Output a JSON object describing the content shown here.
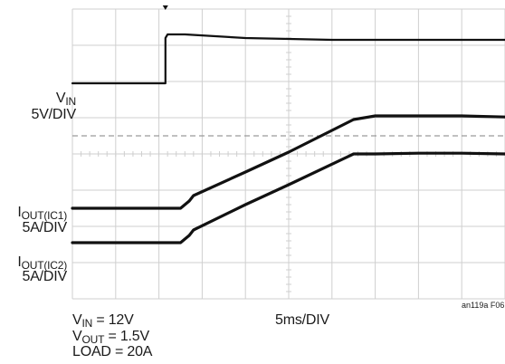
{
  "chart_data": {
    "type": "line",
    "x_divisions": 10,
    "y_divisions": 8,
    "grid": true,
    "series": [
      {
        "x": [
          0,
          2.15,
          2.15,
          2.2,
          2.6,
          4,
          6,
          7,
          8,
          9,
          10
        ],
        "values": [
          5.95,
          5.95,
          7.2,
          7.3,
          7.3,
          7.2,
          7.15,
          7.15,
          7.15,
          7.15,
          7.15
        ]
      },
      {
        "x": [
          0,
          2.5,
          2.6,
          2.7,
          2.8,
          4,
          5,
          6.5,
          7,
          8,
          9,
          10
        ],
        "values": [
          2.5,
          2.5,
          2.6,
          2.7,
          2.85,
          3.5,
          4.05,
          4.95,
          5.05,
          5.05,
          5.05,
          5.02
        ]
      },
      {
        "x": [
          0,
          2.5,
          2.6,
          2.7,
          2.8,
          4,
          5,
          6.5,
          7,
          8,
          9,
          10
        ],
        "values": [
          1.55,
          1.55,
          1.65,
          1.75,
          1.9,
          2.6,
          3.15,
          4.0,
          4.0,
          4.02,
          4.02,
          4.0
        ]
      }
    ],
    "reference_line": {
      "value": 4.5,
      "style": "dashed"
    },
    "trigger_marker": {
      "x": 2.15
    }
  },
  "labels": {
    "vin_sym": "V",
    "vin_sub": "IN",
    "vin_scale": "5V/DIV",
    "iout1_sym": "I",
    "iout1_sub": "OUT(IC1)",
    "iout1_scale": "5A/DIV",
    "iout2_sym": "I",
    "iout2_sub": "OUT(IC2)",
    "iout2_scale": "5A/DIV",
    "cond_vin_sym": "V",
    "cond_vin_sub": "IN",
    "cond_vin_val": " = 12V",
    "cond_vout_sym": "V",
    "cond_vout_sub": "OUT",
    "cond_vout_val": " = 1.5V",
    "cond_load": "LOAD = 20A",
    "timebase": "5ms/DIV",
    "figure_id": "an119a F06"
  }
}
